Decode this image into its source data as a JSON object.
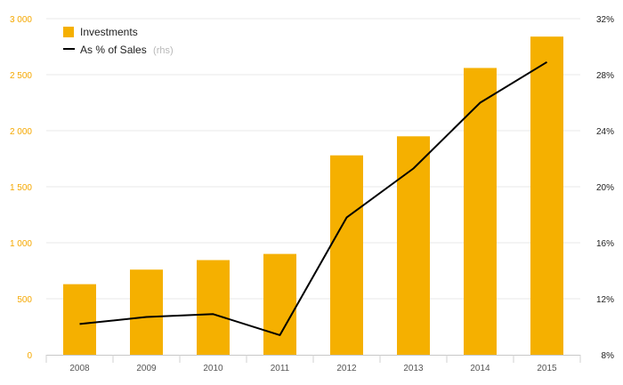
{
  "chart_data": {
    "type": "bar",
    "categories": [
      "2008",
      "2009",
      "2010",
      "2011",
      "2012",
      "2013",
      "2014",
      "2015"
    ],
    "series": [
      {
        "name": "Investments",
        "kind": "bar",
        "axis": "left",
        "color": "#f5b000",
        "values": [
          630,
          760,
          845,
          900,
          1780,
          1950,
          2560,
          2840
        ]
      },
      {
        "name": "As % of Sales",
        "name_suffix": "(rhs)",
        "kind": "line",
        "axis": "right",
        "color": "#000000",
        "values": [
          10.2,
          10.7,
          10.9,
          9.4,
          17.8,
          21.3,
          26.0,
          28.9
        ]
      }
    ],
    "y_left": {
      "lim": [
        0,
        3000
      ],
      "ticks": [
        0,
        500,
        1000,
        1500,
        2000,
        2500,
        3000
      ],
      "tick_labels": [
        "0",
        "500",
        "1 000",
        "1 500",
        "2 000",
        "2 500",
        "3 000"
      ]
    },
    "y_right": {
      "lim": [
        8,
        32
      ],
      "ticks": [
        8,
        12,
        16,
        20,
        24,
        28,
        32
      ],
      "tick_labels": [
        "8%",
        "12%",
        "16%",
        "20%",
        "24%",
        "28%",
        "32%"
      ]
    },
    "title": "",
    "xlabel": "",
    "ylabel": "",
    "grid": true,
    "legend_position": "top-left"
  }
}
